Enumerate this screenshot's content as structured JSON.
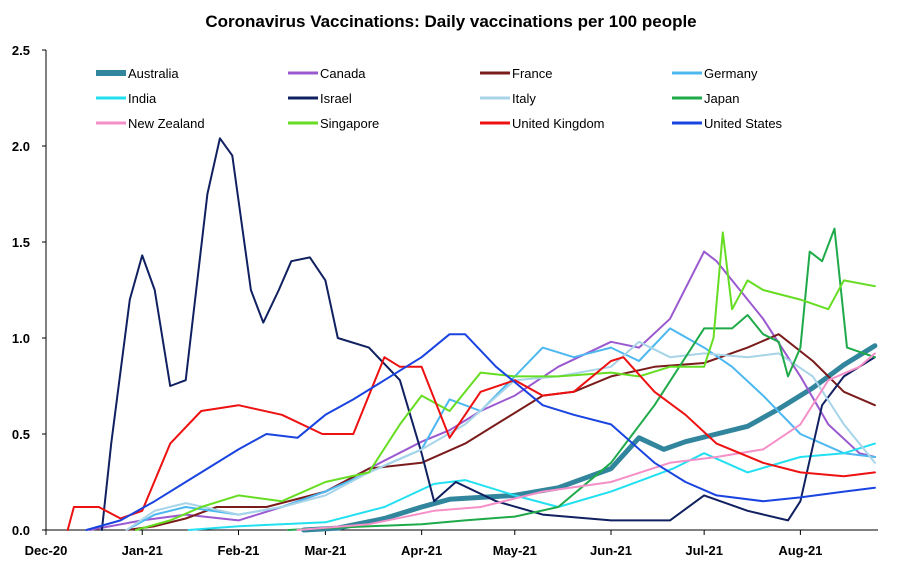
{
  "chart_data": {
    "type": "line",
    "title": "Coronavirus Vaccinations: Daily vaccinations per 100 people",
    "xlabel": "",
    "ylabel": "",
    "x_ticks": [
      "Dec-20",
      "Jan-21",
      "Feb-21",
      "Mar-21",
      "Apr-21",
      "May-21",
      "Jun-21",
      "Jul-21",
      "Aug-21"
    ],
    "x_range": [
      "2020-12-01",
      "2021-08-26"
    ],
    "ylim": [
      0,
      2.5
    ],
    "y_ticks": [
      "0.0",
      "0.5",
      "1.0",
      "1.5",
      "2.0",
      "2.5"
    ],
    "grid": false,
    "legend_position": "top",
    "series": [
      {
        "name": "Australia",
        "color": "#31859c",
        "width": 5,
        "points": [
          [
            "2021-02-22",
            0.0
          ],
          [
            "2021-03-05",
            0.01
          ],
          [
            "2021-03-20",
            0.06
          ],
          [
            "2021-04-01",
            0.12
          ],
          [
            "2021-04-10",
            0.16
          ],
          [
            "2021-04-20",
            0.17
          ],
          [
            "2021-05-01",
            0.18
          ],
          [
            "2021-05-15",
            0.22
          ],
          [
            "2021-06-01",
            0.32
          ],
          [
            "2021-06-10",
            0.48
          ],
          [
            "2021-06-18",
            0.42
          ],
          [
            "2021-06-25",
            0.46
          ],
          [
            "2021-07-05",
            0.5
          ],
          [
            "2021-07-15",
            0.54
          ],
          [
            "2021-07-25",
            0.63
          ],
          [
            "2021-08-05",
            0.74
          ],
          [
            "2021-08-15",
            0.86
          ],
          [
            "2021-08-25",
            0.96
          ]
        ]
      },
      {
        "name": "Canada",
        "color": "#9b59d0",
        "width": 2,
        "points": [
          [
            "2020-12-15",
            0.0
          ],
          [
            "2021-01-01",
            0.05
          ],
          [
            "2021-01-15",
            0.08
          ],
          [
            "2021-02-01",
            0.05
          ],
          [
            "2021-02-15",
            0.12
          ],
          [
            "2021-03-01",
            0.2
          ],
          [
            "2021-03-15",
            0.32
          ],
          [
            "2021-04-01",
            0.46
          ],
          [
            "2021-04-10",
            0.52
          ],
          [
            "2021-04-20",
            0.62
          ],
          [
            "2021-05-01",
            0.7
          ],
          [
            "2021-05-15",
            0.85
          ],
          [
            "2021-06-01",
            0.98
          ],
          [
            "2021-06-10",
            0.95
          ],
          [
            "2021-06-20",
            1.1
          ],
          [
            "2021-07-01",
            1.45
          ],
          [
            "2021-07-05",
            1.4
          ],
          [
            "2021-07-10",
            1.3
          ],
          [
            "2021-07-20",
            1.1
          ],
          [
            "2021-08-01",
            0.8
          ],
          [
            "2021-08-10",
            0.55
          ],
          [
            "2021-08-20",
            0.4
          ],
          [
            "2021-08-25",
            0.38
          ]
        ]
      },
      {
        "name": "France",
        "color": "#7b1c1c",
        "width": 2,
        "points": [
          [
            "2020-12-27",
            0.0
          ],
          [
            "2021-01-05",
            0.02
          ],
          [
            "2021-01-15",
            0.06
          ],
          [
            "2021-01-25",
            0.12
          ],
          [
            "2021-02-10",
            0.12
          ],
          [
            "2021-03-01",
            0.2
          ],
          [
            "2021-03-15",
            0.32
          ],
          [
            "2021-04-01",
            0.35
          ],
          [
            "2021-04-15",
            0.45
          ],
          [
            "2021-04-25",
            0.55
          ],
          [
            "2021-05-10",
            0.7
          ],
          [
            "2021-05-20",
            0.72
          ],
          [
            "2021-06-01",
            0.8
          ],
          [
            "2021-06-15",
            0.85
          ],
          [
            "2021-07-01",
            0.87
          ],
          [
            "2021-07-15",
            0.95
          ],
          [
            "2021-07-25",
            1.02
          ],
          [
            "2021-08-05",
            0.88
          ],
          [
            "2021-08-15",
            0.72
          ],
          [
            "2021-08-25",
            0.65
          ]
        ]
      },
      {
        "name": "Germany",
        "color": "#4db8f0",
        "width": 2,
        "points": [
          [
            "2020-12-27",
            0.0
          ],
          [
            "2021-01-05",
            0.08
          ],
          [
            "2021-01-15",
            0.12
          ],
          [
            "2021-02-01",
            0.08
          ],
          [
            "2021-02-15",
            0.12
          ],
          [
            "2021-03-01",
            0.2
          ],
          [
            "2021-03-15",
            0.3
          ],
          [
            "2021-04-01",
            0.42
          ],
          [
            "2021-04-10",
            0.68
          ],
          [
            "2021-04-20",
            0.62
          ],
          [
            "2021-05-01",
            0.8
          ],
          [
            "2021-05-10",
            0.95
          ],
          [
            "2021-05-20",
            0.9
          ],
          [
            "2021-06-01",
            0.95
          ],
          [
            "2021-06-10",
            0.88
          ],
          [
            "2021-06-20",
            1.05
          ],
          [
            "2021-07-01",
            0.95
          ],
          [
            "2021-07-10",
            0.85
          ],
          [
            "2021-07-20",
            0.7
          ],
          [
            "2021-08-01",
            0.5
          ],
          [
            "2021-08-15",
            0.4
          ],
          [
            "2021-08-25",
            0.38
          ]
        ]
      },
      {
        "name": "India",
        "color": "#22e0f0",
        "width": 2,
        "points": [
          [
            "2021-01-16",
            0.0
          ],
          [
            "2021-02-01",
            0.02
          ],
          [
            "2021-03-01",
            0.04
          ],
          [
            "2021-03-20",
            0.12
          ],
          [
            "2021-04-05",
            0.24
          ],
          [
            "2021-04-15",
            0.26
          ],
          [
            "2021-05-01",
            0.18
          ],
          [
            "2021-05-15",
            0.12
          ],
          [
            "2021-06-01",
            0.2
          ],
          [
            "2021-06-21",
            0.32
          ],
          [
            "2021-07-01",
            0.4
          ],
          [
            "2021-07-15",
            0.3
          ],
          [
            "2021-08-01",
            0.38
          ],
          [
            "2021-08-15",
            0.4
          ],
          [
            "2021-08-25",
            0.45
          ]
        ]
      },
      {
        "name": "Israel",
        "color": "#102060",
        "width": 2,
        "points": [
          [
            "2020-12-19",
            0.0
          ],
          [
            "2020-12-22",
            0.45
          ],
          [
            "2020-12-28",
            1.2
          ],
          [
            "2021-01-01",
            1.43
          ],
          [
            "2021-01-05",
            1.25
          ],
          [
            "2021-01-10",
            0.75
          ],
          [
            "2021-01-15",
            0.78
          ],
          [
            "2021-01-22",
            1.75
          ],
          [
            "2021-01-26",
            2.04
          ],
          [
            "2021-01-30",
            1.95
          ],
          [
            "2021-02-05",
            1.25
          ],
          [
            "2021-02-09",
            1.08
          ],
          [
            "2021-02-14",
            1.25
          ],
          [
            "2021-02-18",
            1.4
          ],
          [
            "2021-02-24",
            1.42
          ],
          [
            "2021-03-01",
            1.3
          ],
          [
            "2021-03-05",
            1.0
          ],
          [
            "2021-03-15",
            0.95
          ],
          [
            "2021-03-25",
            0.78
          ],
          [
            "2021-04-01",
            0.4
          ],
          [
            "2021-04-05",
            0.15
          ],
          [
            "2021-04-12",
            0.25
          ],
          [
            "2021-04-25",
            0.15
          ],
          [
            "2021-05-10",
            0.08
          ],
          [
            "2021-06-01",
            0.05
          ],
          [
            "2021-06-20",
            0.05
          ],
          [
            "2021-07-01",
            0.18
          ],
          [
            "2021-07-15",
            0.1
          ],
          [
            "2021-07-28",
            0.05
          ],
          [
            "2021-08-01",
            0.15
          ],
          [
            "2021-08-08",
            0.65
          ],
          [
            "2021-08-15",
            0.8
          ],
          [
            "2021-08-25",
            0.9
          ]
        ]
      },
      {
        "name": "Italy",
        "color": "#a8d4e8",
        "width": 2,
        "points": [
          [
            "2020-12-27",
            0.0
          ],
          [
            "2021-01-05",
            0.1
          ],
          [
            "2021-01-15",
            0.14
          ],
          [
            "2021-02-01",
            0.08
          ],
          [
            "2021-02-15",
            0.12
          ],
          [
            "2021-03-01",
            0.18
          ],
          [
            "2021-03-15",
            0.3
          ],
          [
            "2021-04-01",
            0.42
          ],
          [
            "2021-04-15",
            0.55
          ],
          [
            "2021-05-01",
            0.78
          ],
          [
            "2021-05-15",
            0.8
          ],
          [
            "2021-06-01",
            0.85
          ],
          [
            "2021-06-10",
            0.98
          ],
          [
            "2021-06-20",
            0.9
          ],
          [
            "2021-07-01",
            0.92
          ],
          [
            "2021-07-15",
            0.9
          ],
          [
            "2021-07-25",
            0.92
          ],
          [
            "2021-08-05",
            0.8
          ],
          [
            "2021-08-15",
            0.55
          ],
          [
            "2021-08-25",
            0.35
          ]
        ]
      },
      {
        "name": "Japan",
        "color": "#1faa4a",
        "width": 2,
        "points": [
          [
            "2021-02-17",
            0.0
          ],
          [
            "2021-03-01",
            0.01
          ],
          [
            "2021-04-01",
            0.03
          ],
          [
            "2021-04-15",
            0.05
          ],
          [
            "2021-05-01",
            0.07
          ],
          [
            "2021-05-15",
            0.12
          ],
          [
            "2021-06-01",
            0.35
          ],
          [
            "2021-06-15",
            0.65
          ],
          [
            "2021-07-01",
            1.05
          ],
          [
            "2021-07-10",
            1.05
          ],
          [
            "2021-07-15",
            1.12
          ],
          [
            "2021-07-20",
            1.02
          ],
          [
            "2021-07-25",
            0.98
          ],
          [
            "2021-07-28",
            0.8
          ],
          [
            "2021-08-01",
            0.95
          ],
          [
            "2021-08-04",
            1.45
          ],
          [
            "2021-08-08",
            1.4
          ],
          [
            "2021-08-12",
            1.57
          ],
          [
            "2021-08-16",
            0.95
          ],
          [
            "2021-08-25",
            0.9
          ]
        ]
      },
      {
        "name": "New Zealand",
        "color": "#f58fc8",
        "width": 2,
        "points": [
          [
            "2021-02-20",
            0.0
          ],
          [
            "2021-03-15",
            0.03
          ],
          [
            "2021-04-05",
            0.1
          ],
          [
            "2021-04-20",
            0.12
          ],
          [
            "2021-05-10",
            0.2
          ],
          [
            "2021-06-01",
            0.25
          ],
          [
            "2021-06-20",
            0.35
          ],
          [
            "2021-07-05",
            0.38
          ],
          [
            "2021-07-20",
            0.42
          ],
          [
            "2021-08-01",
            0.55
          ],
          [
            "2021-08-10",
            0.78
          ],
          [
            "2021-08-20",
            0.85
          ],
          [
            "2021-08-25",
            0.92
          ]
        ]
      },
      {
        "name": "Singapore",
        "color": "#66dd22",
        "width": 2,
        "points": [
          [
            "2020-12-30",
            0.0
          ],
          [
            "2021-01-10",
            0.05
          ],
          [
            "2021-01-20",
            0.12
          ],
          [
            "2021-02-01",
            0.18
          ],
          [
            "2021-02-15",
            0.15
          ],
          [
            "2021-03-01",
            0.25
          ],
          [
            "2021-03-15",
            0.3
          ],
          [
            "2021-03-25",
            0.55
          ],
          [
            "2021-04-01",
            0.7
          ],
          [
            "2021-04-10",
            0.62
          ],
          [
            "2021-04-20",
            0.82
          ],
          [
            "2021-05-01",
            0.8
          ],
          [
            "2021-05-15",
            0.8
          ],
          [
            "2021-06-01",
            0.82
          ],
          [
            "2021-06-10",
            0.8
          ],
          [
            "2021-06-20",
            0.85
          ],
          [
            "2021-07-01",
            0.85
          ],
          [
            "2021-07-04",
            1.0
          ],
          [
            "2021-07-07",
            1.55
          ],
          [
            "2021-07-10",
            1.15
          ],
          [
            "2021-07-15",
            1.3
          ],
          [
            "2021-07-20",
            1.25
          ],
          [
            "2021-08-01",
            1.2
          ],
          [
            "2021-08-10",
            1.15
          ],
          [
            "2021-08-15",
            1.3
          ],
          [
            "2021-08-25",
            1.27
          ]
        ]
      },
      {
        "name": "United Kingdom",
        "color": "#ee1111",
        "width": 2,
        "points": [
          [
            "2020-12-08",
            0.0
          ],
          [
            "2020-12-10",
            0.12
          ],
          [
            "2020-12-18",
            0.12
          ],
          [
            "2020-12-25",
            0.06
          ],
          [
            "2021-01-01",
            0.1
          ],
          [
            "2021-01-10",
            0.45
          ],
          [
            "2021-01-20",
            0.62
          ],
          [
            "2021-02-01",
            0.65
          ],
          [
            "2021-02-15",
            0.6
          ],
          [
            "2021-02-28",
            0.5
          ],
          [
            "2021-03-10",
            0.5
          ],
          [
            "2021-03-20",
            0.9
          ],
          [
            "2021-03-25",
            0.85
          ],
          [
            "2021-04-01",
            0.85
          ],
          [
            "2021-04-10",
            0.48
          ],
          [
            "2021-04-20",
            0.72
          ],
          [
            "2021-05-01",
            0.78
          ],
          [
            "2021-05-10",
            0.7
          ],
          [
            "2021-05-20",
            0.72
          ],
          [
            "2021-06-01",
            0.88
          ],
          [
            "2021-06-05",
            0.9
          ],
          [
            "2021-06-15",
            0.72
          ],
          [
            "2021-06-25",
            0.6
          ],
          [
            "2021-07-05",
            0.45
          ],
          [
            "2021-07-20",
            0.35
          ],
          [
            "2021-08-01",
            0.3
          ],
          [
            "2021-08-15",
            0.28
          ],
          [
            "2021-08-25",
            0.3
          ]
        ]
      },
      {
        "name": "United States",
        "color": "#1a44e0",
        "width": 2,
        "points": [
          [
            "2020-12-14",
            0.0
          ],
          [
            "2020-12-25",
            0.05
          ],
          [
            "2021-01-05",
            0.15
          ],
          [
            "2021-01-15",
            0.25
          ],
          [
            "2021-02-01",
            0.42
          ],
          [
            "2021-02-10",
            0.5
          ],
          [
            "2021-02-20",
            0.48
          ],
          [
            "2021-03-01",
            0.6
          ],
          [
            "2021-03-10",
            0.68
          ],
          [
            "2021-03-20",
            0.78
          ],
          [
            "2021-04-01",
            0.9
          ],
          [
            "2021-04-10",
            1.02
          ],
          [
            "2021-04-15",
            1.02
          ],
          [
            "2021-04-25",
            0.85
          ],
          [
            "2021-05-10",
            0.65
          ],
          [
            "2021-05-20",
            0.6
          ],
          [
            "2021-06-01",
            0.55
          ],
          [
            "2021-06-15",
            0.35
          ],
          [
            "2021-06-25",
            0.25
          ],
          [
            "2021-07-05",
            0.18
          ],
          [
            "2021-07-20",
            0.15
          ],
          [
            "2021-08-01",
            0.17
          ],
          [
            "2021-08-15",
            0.2
          ],
          [
            "2021-08-25",
            0.22
          ]
        ]
      }
    ]
  }
}
